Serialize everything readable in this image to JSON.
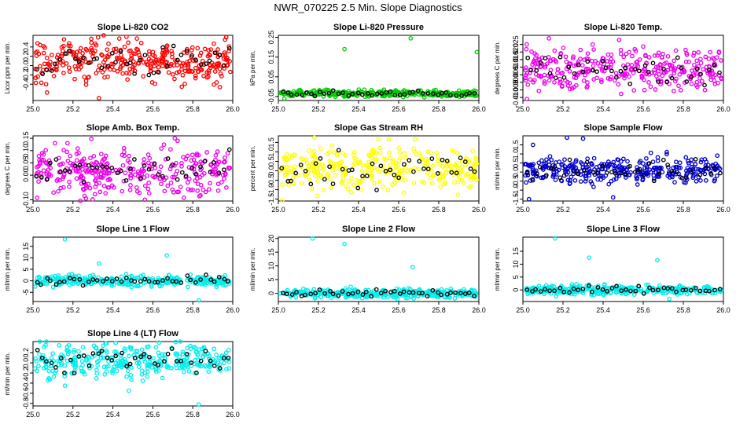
{
  "title": "NWR_070225  2.5 Min. Slope Diagnostics",
  "chart_data": [
    {
      "type": "scatter",
      "title": "Slope Li-820 CO2",
      "ylabel": "Licor ppm per min.",
      "color": "#ff0000",
      "xlim": [
        25.0,
        26.0
      ],
      "ylim": [
        -0.75,
        0.65
      ],
      "xticks": [
        "25.0",
        "25.2",
        "25.4",
        "25.6",
        "25.8",
        "26.0"
      ],
      "yticks": [
        "-0.4",
        "-0.2",
        "0.0",
        "0.2",
        "0.4"
      ],
      "center": 0.1,
      "spread": 0.22,
      "n": 330,
      "outliers": [
        [
          25.07,
          -0.58
        ],
        [
          25.33,
          -0.7
        ],
        [
          25.52,
          0.58
        ]
      ]
    },
    {
      "type": "scatter",
      "title": "Slope Li-820 Pressure",
      "ylabel": "kPa per min.",
      "color": "#00cc00",
      "xlim": [
        25.0,
        26.0
      ],
      "ylim": [
        -0.07,
        0.26
      ],
      "xticks": [
        "25.0",
        "25.2",
        "25.4",
        "25.6",
        "25.8",
        "26.0"
      ],
      "yticks": [
        "-0.05",
        "0.05",
        "0.15",
        "0.25"
      ],
      "center": -0.035,
      "spread": 0.008,
      "n": 330,
      "outliers": [
        [
          25.33,
          0.19
        ],
        [
          25.66,
          0.245
        ],
        [
          25.99,
          0.175
        ],
        [
          25.03,
          -0.06
        ]
      ]
    },
    {
      "type": "scatter",
      "title": "Slope Li-820 Temp.",
      "ylabel": "degrees C per min.",
      "color": "#ee00ee",
      "xlim": [
        25.0,
        26.0
      ],
      "ylim": [
        -0.012,
        0.031
      ],
      "xticks": [
        "25.0",
        "25.2",
        "25.4",
        "25.6",
        "25.8",
        "26.0"
      ],
      "yticks": [
        "-0.010",
        "-0.005",
        "0.000",
        "0.005",
        "0.010",
        "0.015",
        "0.020",
        "0.025"
      ],
      "center": 0.009,
      "spread": 0.007,
      "n": 330,
      "outliers": [
        [
          25.13,
          0.029
        ],
        [
          25.48,
          0.028
        ],
        [
          25.02,
          -0.011
        ]
      ]
    },
    {
      "type": "scatter",
      "title": "Slope Amb. Box Temp.",
      "ylabel": "degrees C per min.",
      "color": "#ee00ee",
      "xlim": [
        25.0,
        26.0
      ],
      "ylim": [
        -0.105,
        0.16
      ],
      "xticks": [
        "25.0",
        "25.2",
        "25.4",
        "25.6",
        "25.8",
        "26.0"
      ],
      "yticks": [
        "-0.10",
        "0.00",
        "0.05",
        "0.10",
        "0.15"
      ],
      "center": 0.015,
      "spread": 0.045,
      "n": 330,
      "outliers": [
        [
          25.71,
          0.15
        ],
        [
          25.11,
          0.13
        ],
        [
          25.56,
          -0.1
        ]
      ]
    },
    {
      "type": "scatter",
      "title": "Slope Gas Stream RH",
      "ylabel": "percent per min.",
      "color": "#ffff00",
      "xlim": [
        25.0,
        26.0
      ],
      "ylim": [
        -1.6,
        1.85
      ],
      "xticks": [
        "25.0",
        "25.2",
        "25.4",
        "25.6",
        "25.8",
        "26.0"
      ],
      "yticks": [
        "-1.5",
        "-1.0",
        "-0.5",
        "0.0",
        "0.5",
        "1.0",
        "1.5"
      ],
      "center": 0.1,
      "spread": 0.55,
      "n": 330,
      "outliers": [
        [
          25.18,
          1.75
        ],
        [
          25.55,
          1.65
        ],
        [
          25.02,
          -1.55
        ]
      ]
    },
    {
      "type": "scatter",
      "title": "Slope Sample Flow",
      "ylabel": "ml/min per min.",
      "color": "#0000cc",
      "xlim": [
        25.0,
        26.0
      ],
      "ylim": [
        -1.6,
        2.0
      ],
      "xticks": [
        "25.0",
        "25.2",
        "25.4",
        "25.6",
        "25.8",
        "26.0"
      ],
      "yticks": [
        "-1.5",
        "-1.0",
        "-0.5",
        "0.0",
        "0.5",
        "1.0",
        "1.5"
      ],
      "center": 0.1,
      "spread": 0.35,
      "n": 330,
      "outliers": [
        [
          25.05,
          1.5
        ],
        [
          25.22,
          1.9
        ],
        [
          25.3,
          1.85
        ],
        [
          25.03,
          -1.5
        ],
        [
          25.45,
          -1.4
        ]
      ]
    },
    {
      "type": "scatter",
      "title": "Slope Line 1 Flow",
      "ylabel": "ml/min per min.",
      "color": "#00eeee",
      "xlim": [
        25.0,
        26.0
      ],
      "ylim": [
        -9.0,
        19.0
      ],
      "xticks": [
        "25.0",
        "25.2",
        "25.4",
        "25.6",
        "25.8",
        "26.0"
      ],
      "yticks": [
        "-5",
        "0",
        "5",
        "10",
        "15"
      ],
      "center": 0.0,
      "spread": 1.2,
      "n": 330,
      "outliers": [
        [
          25.16,
          18.0
        ],
        [
          25.33,
          7.5
        ],
        [
          25.67,
          11.0
        ],
        [
          25.83,
          -8.5
        ]
      ]
    },
    {
      "type": "scatter",
      "title": "Slope Line 2 Flow",
      "ylabel": "ml/min per min.",
      "color": "#00eeee",
      "xlim": [
        25.0,
        26.0
      ],
      "ylim": [
        -3.0,
        20.5
      ],
      "xticks": [
        "25.0",
        "25.2",
        "25.4",
        "25.6",
        "25.8",
        "26.0"
      ],
      "yticks": [
        "0",
        "5",
        "10",
        "15",
        "20"
      ],
      "center": 0.0,
      "spread": 0.8,
      "n": 330,
      "outliers": [
        [
          25.17,
          20.0
        ],
        [
          25.33,
          18.0
        ],
        [
          25.67,
          9.5
        ]
      ]
    },
    {
      "type": "scatter",
      "title": "Slope Line 3 Flow",
      "ylabel": "ml/min per min.",
      "color": "#00eeee",
      "xlim": [
        25.0,
        26.0
      ],
      "ylim": [
        -4.5,
        20.5
      ],
      "xticks": [
        "25.0",
        "25.2",
        "25.4",
        "25.6",
        "25.8",
        "26.0"
      ],
      "yticks": [
        "0",
        "5",
        "10",
        "15"
      ],
      "center": 0.0,
      "spread": 0.9,
      "n": 330,
      "outliers": [
        [
          25.16,
          20.0
        ],
        [
          25.33,
          12.5
        ],
        [
          25.67,
          11.5
        ],
        [
          25.73,
          -3.5
        ]
      ]
    },
    {
      "type": "scatter",
      "title": "Slope Line 4 (LT) Flow",
      "ylabel": "ml/min per min.",
      "color": "#00eeee",
      "xlim": [
        25.0,
        26.0
      ],
      "ylim": [
        -0.85,
        0.42
      ],
      "xticks": [
        "25.0",
        "25.2",
        "25.4",
        "25.6",
        "25.8",
        "26.0"
      ],
      "yticks": [
        "-0.8",
        "-0.6",
        "-0.4",
        "-0.2",
        "0.0",
        "0.2"
      ],
      "center": 0.05,
      "spread": 0.16,
      "n": 330,
      "outliers": [
        [
          25.83,
          -0.82
        ],
        [
          25.48,
          -0.55
        ],
        [
          25.16,
          -0.45
        ],
        [
          25.63,
          0.4
        ]
      ]
    }
  ]
}
